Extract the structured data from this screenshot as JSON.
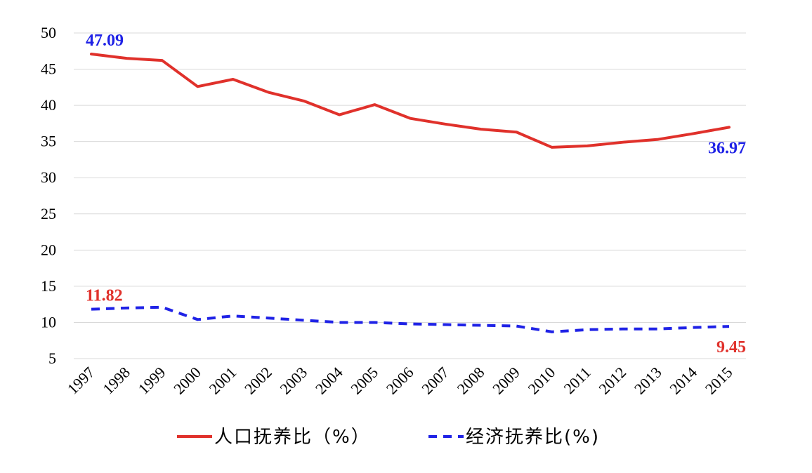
{
  "chart_data": {
    "type": "line",
    "x": [
      "1997",
      "1998",
      "1999",
      "2000",
      "2001",
      "2002",
      "2003",
      "2004",
      "2005",
      "2006",
      "2007",
      "2008",
      "2009",
      "2010",
      "2011",
      "2012",
      "2013",
      "2014",
      "2015"
    ],
    "ylim": [
      5,
      50
    ],
    "yticks": [
      5,
      10,
      15,
      20,
      25,
      30,
      35,
      40,
      45,
      50
    ],
    "grid": true,
    "legend_position": "bottom",
    "series": [
      {
        "name": "人口抚养比（%）",
        "color": "#e0312b",
        "style": "solid",
        "values": [
          47.09,
          46.5,
          46.2,
          42.6,
          43.6,
          41.8,
          40.6,
          38.7,
          40.1,
          38.2,
          37.4,
          36.7,
          36.3,
          34.2,
          34.4,
          34.9,
          35.3,
          36.1,
          36.97
        ]
      },
      {
        "name": "经济抚养比(%)",
        "color": "#1f22e6",
        "style": "dashed",
        "values": [
          11.82,
          12.0,
          12.1,
          10.4,
          10.9,
          10.6,
          10.3,
          10.0,
          10.0,
          9.8,
          9.7,
          9.6,
          9.5,
          8.7,
          9.0,
          9.1,
          9.1,
          9.3,
          9.45
        ]
      }
    ],
    "annotations": [
      {
        "text": "47.09",
        "series": 0,
        "index": 0,
        "color": "#1f22e6",
        "placement": "above"
      },
      {
        "text": "36.97",
        "series": 0,
        "index": 18,
        "color": "#1f22e6",
        "placement": "below"
      },
      {
        "text": "11.82",
        "series": 1,
        "index": 0,
        "color": "#e0312b",
        "placement": "above"
      },
      {
        "text": "9.45",
        "series": 1,
        "index": 18,
        "color": "#e0312b",
        "placement": "below"
      }
    ]
  }
}
